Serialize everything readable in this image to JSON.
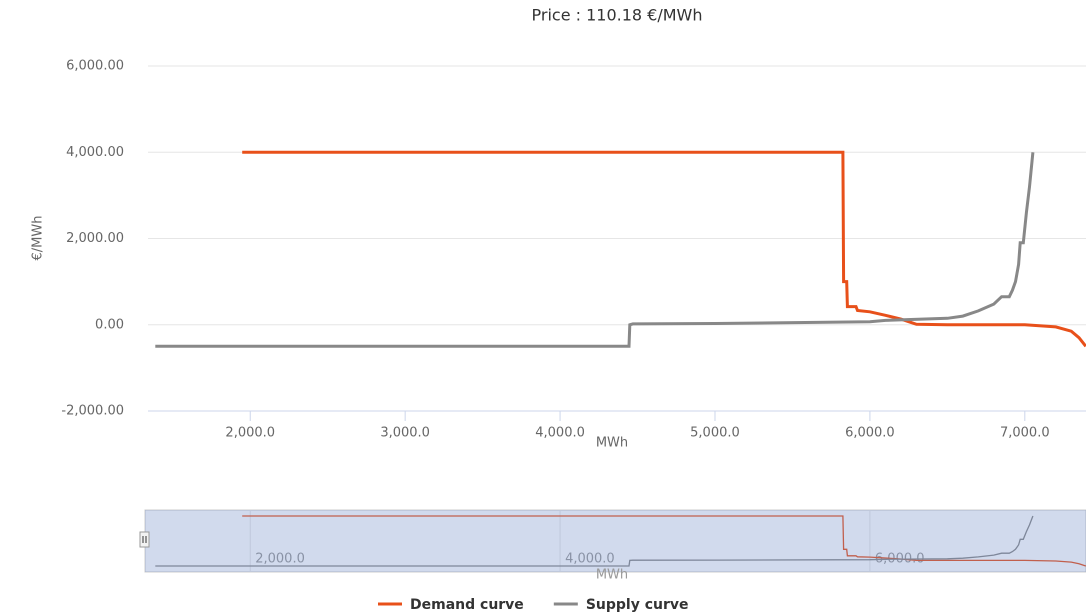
{
  "chart_data": {
    "type": "line",
    "title": "Price : 110.18 €/MWh",
    "x_label": "MWh",
    "y_label": "€/MWh",
    "xlim": [
      1340,
      7395
    ],
    "ylim": [
      -2000,
      6000
    ],
    "xticks": [
      {
        "value": 2000,
        "label": "2,000.0"
      },
      {
        "value": 3000,
        "label": "3,000.0"
      },
      {
        "value": 4000,
        "label": "4,000.0"
      },
      {
        "value": 5000,
        "label": "5,000.0"
      },
      {
        "value": 6000,
        "label": "6,000.0"
      },
      {
        "value": 7000,
        "label": "7,000.0"
      }
    ],
    "yticks": [
      {
        "value": -2000,
        "label": "-2,000.00"
      },
      {
        "value": 0,
        "label": "0.00"
      },
      {
        "value": 2000,
        "label": "2,000.00"
      },
      {
        "value": 4000,
        "label": "4,000.00"
      },
      {
        "value": 6000,
        "label": "6,000.00"
      }
    ],
    "grid": true,
    "legend": "bottom",
    "series": [
      {
        "name": "Demand curve",
        "color": "#e8501a",
        "x": [
          1948,
          5826,
          5830,
          5850,
          5855,
          5910,
          5920,
          6000,
          6100,
          6200,
          6260,
          6300,
          6500,
          7000,
          7200,
          7300,
          7350,
          7394
        ],
        "values": [
          4000,
          4000,
          1000,
          1000,
          420,
          420,
          330,
          300,
          220,
          130,
          60,
          10,
          0,
          0,
          -50,
          -150,
          -300,
          -500
        ]
      },
      {
        "name": "Supply curve",
        "color": "#888888",
        "x": [
          1387,
          4445,
          4450,
          4470,
          5000,
          6000,
          6100,
          6500,
          6600,
          6700,
          6800,
          6850,
          6900,
          6920,
          6940,
          6960,
          6970,
          6990,
          7010,
          7030,
          7052
        ],
        "values": [
          -500,
          -500,
          0,
          20,
          30,
          70,
          100,
          150,
          200,
          320,
          480,
          650,
          650,
          800,
          1000,
          1400,
          1900,
          1900,
          2600,
          3200,
          4000
        ]
      }
    ],
    "navigator": {
      "ylim": [
        -500,
        4000
      ],
      "xticks": [
        {
          "value": 2000,
          "label": "2,000.0"
        },
        {
          "value": 4000,
          "label": "4,000.0"
        },
        {
          "value": 6000,
          "label": "6,000.0"
        }
      ]
    }
  }
}
